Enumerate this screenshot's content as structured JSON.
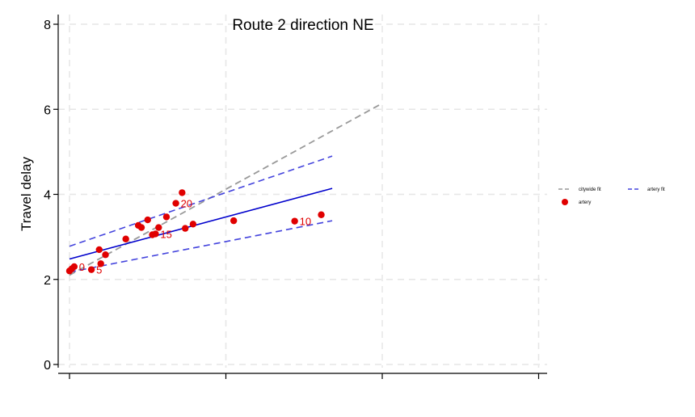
{
  "chart_data": {
    "type": "scatter",
    "title": "Route 2 direction NE",
    "xlabel": "",
    "ylabel": "Travel delay",
    "xlim": [
      -0.8,
      30.5
    ],
    "ylim": [
      -0.2,
      8.2
    ],
    "xticks": [
      0,
      10,
      20,
      30
    ],
    "yticks": [
      0,
      2,
      4,
      6,
      8
    ],
    "grid": true,
    "legend_position": "right",
    "legend": {
      "citywide_fit": "citywide fit",
      "artery_fit": "artery fit",
      "artery": "artery"
    },
    "colors": {
      "artery_points": "#e00000",
      "artery_fit": "#0000cc",
      "artery_ci": "#4444dd",
      "citywide_fit": "#999999",
      "grid": "#e6e6e6"
    },
    "artery_points": [
      {
        "x": 0.0,
        "y": 2.2
      },
      {
        "x": 0.15,
        "y": 2.25
      },
      {
        "x": 0.3,
        "y": 2.3
      },
      {
        "x": 1.4,
        "y": 2.23
      },
      {
        "x": 1.9,
        "y": 2.7
      },
      {
        "x": 2.0,
        "y": 2.37
      },
      {
        "x": 2.3,
        "y": 2.58
      },
      {
        "x": 3.6,
        "y": 2.95
      },
      {
        "x": 4.4,
        "y": 3.27
      },
      {
        "x": 4.6,
        "y": 3.22
      },
      {
        "x": 5.0,
        "y": 3.4
      },
      {
        "x": 5.3,
        "y": 3.05
      },
      {
        "x": 5.5,
        "y": 3.07
      },
      {
        "x": 5.7,
        "y": 3.22
      },
      {
        "x": 6.2,
        "y": 3.47
      },
      {
        "x": 6.8,
        "y": 3.79
      },
      {
        "x": 7.2,
        "y": 4.04
      },
      {
        "x": 7.4,
        "y": 3.2
      },
      {
        "x": 7.9,
        "y": 3.3
      },
      {
        "x": 10.5,
        "y": 3.38
      },
      {
        "x": 14.4,
        "y": 3.37
      },
      {
        "x": 16.1,
        "y": 3.52
      }
    ],
    "point_labels": [
      {
        "text": "0",
        "x": 0.3,
        "y": 2.3
      },
      {
        "text": "5",
        "x": 1.4,
        "y": 2.23
      },
      {
        "text": "15",
        "x": 5.5,
        "y": 3.07
      },
      {
        "text": "20",
        "x": 6.8,
        "y": 3.79
      },
      {
        "text": "10",
        "x": 14.4,
        "y": 3.37
      }
    ],
    "artery_fit": {
      "x": [
        0,
        16.8
      ],
      "y": [
        2.48,
        4.14
      ]
    },
    "artery_ci_upper": {
      "x": [
        0,
        16.8
      ],
      "y": [
        2.78,
        4.9
      ]
    },
    "artery_ci_lower": {
      "x": [
        0,
        16.8
      ],
      "y": [
        2.17,
        3.38
      ]
    },
    "citywide_fit": {
      "x": [
        0,
        20
      ],
      "y": [
        2.1,
        6.14
      ]
    }
  }
}
